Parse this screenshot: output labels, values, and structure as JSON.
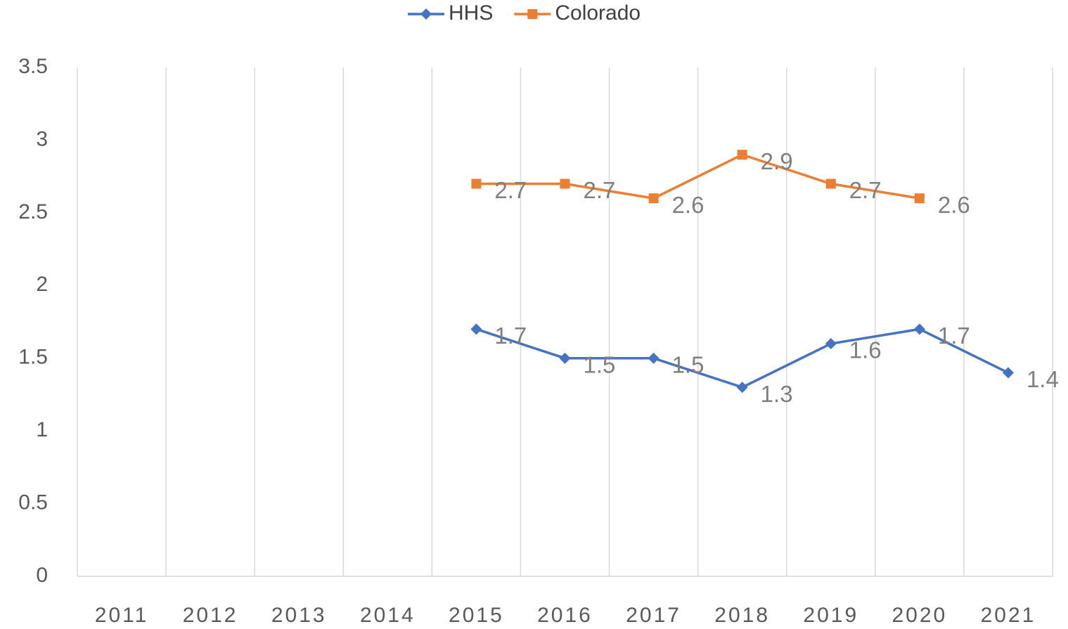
{
  "chart_data": {
    "type": "line",
    "categories": [
      "2011",
      "2012",
      "2013",
      "2014",
      "2015",
      "2016",
      "2017",
      "2018",
      "2019",
      "2020",
      "2021"
    ],
    "series": [
      {
        "name": "HHS",
        "color": "#4472c4",
        "marker": "diamond",
        "values": [
          null,
          null,
          null,
          null,
          1.7,
          1.5,
          1.5,
          1.3,
          1.6,
          1.7,
          1.4
        ]
      },
      {
        "name": "Colorado",
        "color": "#ed7d31",
        "marker": "square",
        "values": [
          null,
          null,
          null,
          null,
          2.7,
          2.7,
          2.6,
          2.9,
          2.7,
          2.6,
          null
        ]
      }
    ],
    "ylim": [
      0,
      3.5
    ],
    "yticks": [
      0,
      0.5,
      1,
      1.5,
      2,
      2.5,
      3,
      3.5
    ],
    "legend": "top",
    "grid": "vertical"
  }
}
